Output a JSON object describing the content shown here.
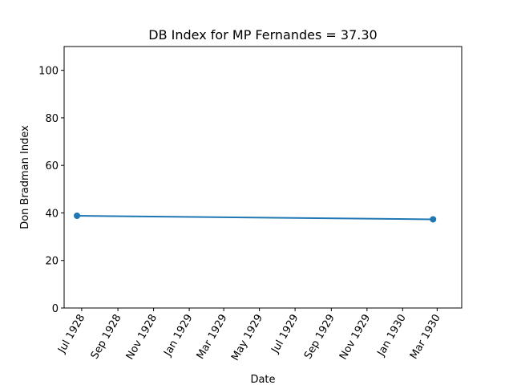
{
  "chart_data": {
    "type": "line",
    "title": "DB Index for MP Fernandes = 37.30",
    "xlabel": "Date",
    "ylabel": "Don Bradman Index",
    "ylim": [
      0,
      110
    ],
    "xlim": [
      "1928-06-01",
      "1930-04-12"
    ],
    "yticks": [
      0,
      20,
      40,
      60,
      80,
      100
    ],
    "xticks": [
      {
        "date": "1928-07-01",
        "label": "Jul 1928"
      },
      {
        "date": "1928-09-01",
        "label": "Sep 1928"
      },
      {
        "date": "1928-11-01",
        "label": "Nov 1928"
      },
      {
        "date": "1929-01-01",
        "label": "Jan 1929"
      },
      {
        "date": "1929-03-01",
        "label": "Mar 1929"
      },
      {
        "date": "1929-05-01",
        "label": "May 1929"
      },
      {
        "date": "1929-07-01",
        "label": "Jul 1929"
      },
      {
        "date": "1929-09-01",
        "label": "Sep 1929"
      },
      {
        "date": "1929-11-01",
        "label": "Nov 1929"
      },
      {
        "date": "1930-01-01",
        "label": "Jan 1930"
      },
      {
        "date": "1930-03-01",
        "label": "Mar 1930"
      }
    ],
    "grid": false,
    "series": [
      {
        "color": "#1f77b4",
        "marker": "circle",
        "points": [
          {
            "x": "1928-06-23",
            "y": 38.8
          },
          {
            "x": "1930-02-22",
            "y": 37.3
          }
        ]
      }
    ]
  }
}
